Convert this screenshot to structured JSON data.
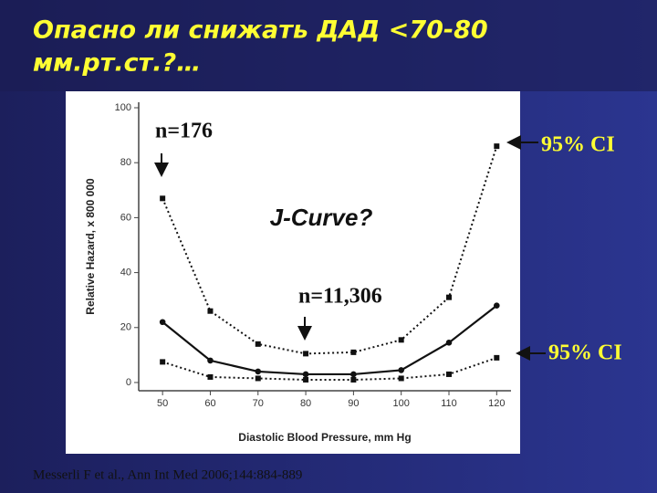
{
  "slide_title": [
    "Опасно ли снижать ДАД <70-80",
    "мм.рт.ст.?…"
  ],
  "chart_data": {
    "type": "line",
    "x": [
      50,
      60,
      70,
      80,
      90,
      100,
      110,
      120
    ],
    "series": [
      {
        "color": "#111111",
        "dash": "dotted",
        "marker": "square",
        "values": [
          67,
          26,
          14,
          10.5,
          11,
          15.5,
          31,
          86
        ]
      },
      {
        "color": "#111111",
        "dash": "solid",
        "marker": "circle",
        "values": [
          22,
          8,
          4,
          3,
          3,
          4.5,
          14.5,
          28
        ]
      },
      {
        "color": "#111111",
        "dash": "dotted",
        "marker": "square",
        "values": [
          7.5,
          2,
          1.5,
          1,
          1,
          1.5,
          3,
          9
        ]
      }
    ],
    "xlim": [
      45,
      123
    ],
    "xticks": [
      50,
      60,
      70,
      80,
      90,
      100,
      110,
      120
    ],
    "ylim": [
      -3,
      102
    ],
    "yticks": [
      0,
      20,
      40,
      60,
      80,
      100
    ],
    "xlabel": "Diastolic Blood Pressure, mm Hg",
    "ylabel": "Relative Hazard, x 800 000",
    "annotations": [
      "n=176",
      "J-Curve?",
      "n=11,306",
      "95% CI",
      "95% CI"
    ]
  },
  "citation": "Messerli F et al., Ann Int Med 2006;144:884-889"
}
